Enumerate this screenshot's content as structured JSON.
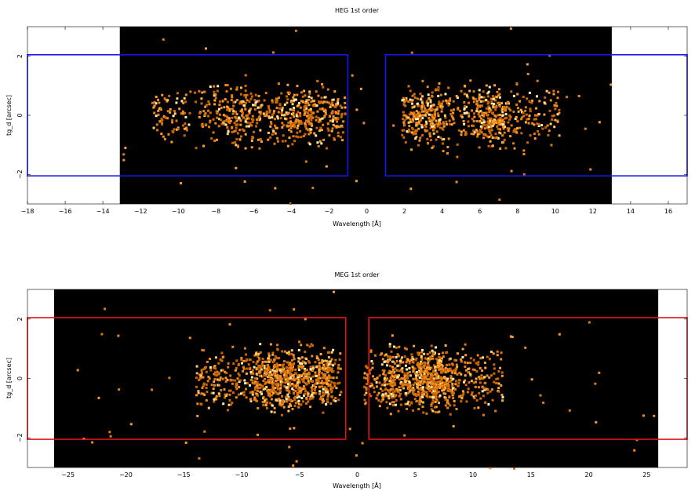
{
  "chart_data": [
    {
      "type": "heatmap",
      "title": "HEG 1st order",
      "xlabel": "Wavelength [Å]",
      "ylabel": "tg_d [arcsec]",
      "xlim": [
        -18,
        17
      ],
      "ylim": [
        -3,
        3
      ],
      "xticks": [
        -18,
        -16,
        -14,
        -12,
        -10,
        -8,
        -6,
        -4,
        -2,
        0,
        2,
        4,
        6,
        8,
        10,
        12,
        14,
        16
      ],
      "yticks": [
        -2,
        0,
        2
      ],
      "background_region": [
        -13.1,
        13.0
      ],
      "background_color": "#000000",
      "box_color": "#1515ee",
      "boxes": [
        {
          "x0": -18,
          "x1": -1.0,
          "y0": -2.05,
          "y1": 2.05
        },
        {
          "x0": 1.0,
          "x1": 17,
          "y0": -2.05,
          "y1": 2.05
        }
      ],
      "emission_clusters": [
        {
          "xmin": -11.5,
          "xmax": -1.2,
          "ymin": -1.1,
          "ymax": 1.1,
          "peaks": [
            -7.5,
            -6.2,
            -4.0,
            -3.2,
            -1.9
          ]
        },
        {
          "xmin": 1.8,
          "xmax": 10.2,
          "ymin": -1.1,
          "ymax": 1.1,
          "peaks": [
            2.5,
            3.4,
            6.2,
            6.8
          ]
        }
      ]
    },
    {
      "type": "heatmap",
      "title": "MEG 1st order",
      "xlabel": "Wavelength [Å]",
      "ylabel": "tg_d [arcsec]",
      "xlim": [
        -28.5,
        28.5
      ],
      "ylim": [
        -3,
        3
      ],
      "xticks": [
        -25,
        -20,
        -15,
        -10,
        -5,
        0,
        5,
        10,
        15,
        20,
        25
      ],
      "yticks": [
        -2,
        0,
        2
      ],
      "background_region": [
        -26.2,
        26.0
      ],
      "background_color": "#000000",
      "box_color": "#dd1515",
      "boxes": [
        {
          "x0": -28.5,
          "x1": -1.0,
          "y0": -2.05,
          "y1": 2.05
        },
        {
          "x0": 1.0,
          "x1": 28.5,
          "y0": -2.05,
          "y1": 2.05
        }
      ],
      "emission_clusters": [
        {
          "xmin": -14.0,
          "xmax": -1.5,
          "ymin": -1.2,
          "ymax": 1.2,
          "peaks": [
            -8.0,
            -7.0,
            -5.5,
            -3.0
          ]
        },
        {
          "xmin": 0.5,
          "xmax": 12.5,
          "ymin": -1.2,
          "ymax": 1.2,
          "peaks": [
            3.2,
            5.5,
            6.3,
            7.2
          ]
        }
      ]
    }
  ]
}
